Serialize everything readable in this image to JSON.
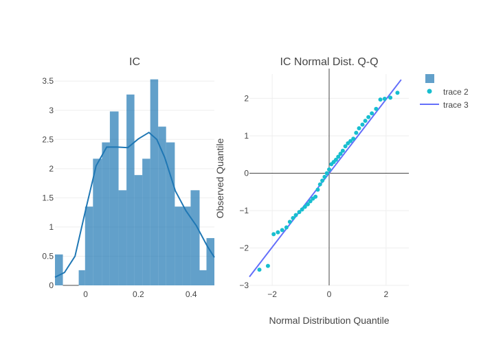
{
  "chart_data": [
    {
      "type": "bar",
      "title": "IC",
      "xlabel": "",
      "ylabel": "",
      "xlim": [
        -0.116,
        0.488
      ],
      "ylim": [
        0,
        3.62
      ],
      "x_ticks": [
        0,
        0.2,
        0.4
      ],
      "y_ticks": [
        0,
        0.5,
        1,
        1.5,
        2,
        2.5,
        3,
        3.5
      ],
      "x_tick_labels": [
        "0",
        "0.2",
        "0.4"
      ],
      "y_tick_labels": [
        "0",
        "0.5",
        "1",
        "1.5",
        "2",
        "2.5",
        "3",
        "3.5"
      ],
      "bar_color": "#1f77b4",
      "bins": [
        {
          "x0": -0.116,
          "x1": -0.086,
          "value": 0.53
        },
        {
          "x0": -0.086,
          "x1": -0.026,
          "value": 0
        },
        {
          "x0": -0.026,
          "x1": -0.002,
          "value": 0.26
        },
        {
          "x0": -0.002,
          "x1": 0.028,
          "value": 1.35
        },
        {
          "x0": 0.028,
          "x1": 0.062,
          "value": 2.17
        },
        {
          "x0": 0.062,
          "x1": 0.092,
          "value": 2.45
        },
        {
          "x0": 0.092,
          "x1": 0.125,
          "value": 2.98
        },
        {
          "x0": 0.125,
          "x1": 0.155,
          "value": 1.63
        },
        {
          "x0": 0.155,
          "x1": 0.185,
          "value": 3.27
        },
        {
          "x0": 0.185,
          "x1": 0.215,
          "value": 1.89
        },
        {
          "x0": 0.215,
          "x1": 0.245,
          "value": 2.17
        },
        {
          "x0": 0.245,
          "x1": 0.275,
          "value": 3.53
        },
        {
          "x0": 0.275,
          "x1": 0.305,
          "value": 2.72
        },
        {
          "x0": 0.305,
          "x1": 0.338,
          "value": 2.45
        },
        {
          "x0": 0.338,
          "x1": 0.368,
          "value": 1.35
        },
        {
          "x0": 0.368,
          "x1": 0.398,
          "value": 1.35
        },
        {
          "x0": 0.398,
          "x1": 0.432,
          "value": 1.63
        },
        {
          "x0": 0.432,
          "x1": 0.458,
          "value": 0.26
        },
        {
          "x0": 0.458,
          "x1": 0.488,
          "value": 0.81
        }
      ],
      "kde": {
        "x": [
          -0.116,
          -0.08,
          -0.04,
          0.0,
          0.04,
          0.08,
          0.12,
          0.16,
          0.2,
          0.24,
          0.27,
          0.3,
          0.34,
          0.38,
          0.42,
          0.46,
          0.488
        ],
        "y": [
          0.14,
          0.22,
          0.5,
          1.29,
          2.05,
          2.37,
          2.37,
          2.36,
          2.51,
          2.62,
          2.5,
          2.19,
          1.62,
          1.28,
          1.02,
          0.68,
          0.48
        ]
      }
    },
    {
      "type": "scatter",
      "title": "IC Normal Dist. Q-Q",
      "xlabel": "Normal Distribution Quantile",
      "ylabel": "Observed Quantile",
      "xlim": [
        -2.8,
        2.8
      ],
      "ylim": [
        -3.0,
        2.65
      ],
      "x_ticks": [
        -2,
        0,
        2
      ],
      "y_ticks": [
        -3,
        -2,
        -1,
        0,
        1,
        2
      ],
      "x_tick_labels": [
        "−2",
        "0",
        "2"
      ],
      "y_tick_labels": [
        "−3",
        "−2",
        "−1",
        "0",
        "1",
        "2"
      ],
      "series": [
        {
          "name": "trace 2",
          "mode": "markers",
          "color": "#17becf",
          "x": [
            -2.45,
            -2.15,
            -1.95,
            -1.8,
            -1.65,
            -1.5,
            -1.38,
            -1.27,
            -1.17,
            -1.05,
            -0.95,
            -0.85,
            -0.75,
            -0.66,
            -0.57,
            -0.48,
            -0.4,
            -0.32,
            -0.24,
            -0.16,
            -0.08,
            0.0,
            0.08,
            0.16,
            0.24,
            0.32,
            0.4,
            0.48,
            0.57,
            0.66,
            0.75,
            0.85,
            0.95,
            1.05,
            1.17,
            1.27,
            1.38,
            1.5,
            1.65,
            1.8,
            1.95,
            2.15,
            2.4
          ],
          "y": [
            -2.58,
            -2.48,
            -1.63,
            -1.58,
            -1.52,
            -1.45,
            -1.3,
            -1.2,
            -1.12,
            -1.04,
            -0.97,
            -0.9,
            -0.83,
            -0.75,
            -0.68,
            -0.63,
            -0.44,
            -0.3,
            -0.2,
            -0.1,
            0.0,
            0.1,
            0.24,
            0.3,
            0.36,
            0.44,
            0.52,
            0.6,
            0.72,
            0.8,
            0.86,
            0.92,
            1.08,
            1.2,
            1.3,
            1.4,
            1.5,
            1.6,
            1.72,
            1.97,
            1.99,
            2.02,
            2.15
          ]
        },
        {
          "name": "trace 3",
          "mode": "line",
          "color": "#636efa",
          "x": [
            -2.8,
            2.53
          ],
          "y": [
            -2.77,
            2.5
          ]
        }
      ],
      "legend_position": "top-right"
    }
  ],
  "legend": {
    "items": [
      {
        "label": "",
        "kind": "bar",
        "color": "#1f77b4"
      },
      {
        "label": "trace 2",
        "kind": "marker",
        "color": "#17becf"
      },
      {
        "label": "trace 3",
        "kind": "line",
        "color": "#636efa"
      }
    ]
  }
}
